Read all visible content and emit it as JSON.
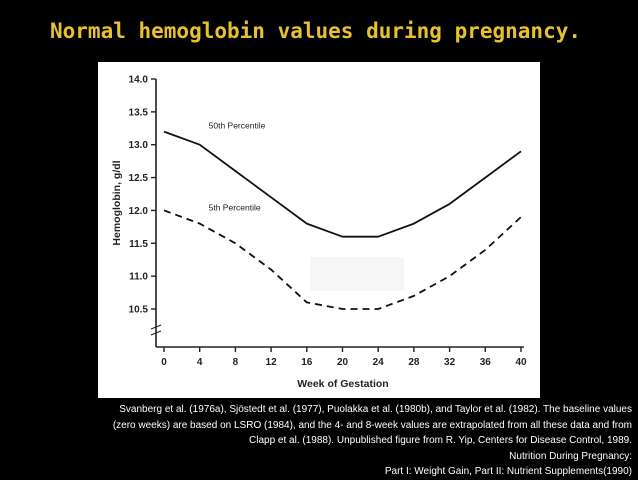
{
  "slide": {
    "title": "Normal hemoglobin values during pregnancy.",
    "colors": {
      "background": "#000000",
      "title": "#e8c030",
      "panel": "#ffffff",
      "text": "#ffffff"
    }
  },
  "citation": {
    "lines": [
      "Svanberg et al. (1976a), Sjöstedt et al. (1977), Puolakka et al. (1980b), and Taylor et al. (1982). The baseline values",
      "(zero weeks) are based on LSRO (1984), and the 4- and 8-week values are extrapolated from all these data and from",
      "Clapp et al. (1988). Unpublished figure from R. Yip, Centers for Disease Control, 1989.",
      "Nutrition During Pregnancy:",
      "Part I: Weight Gain, Part II: Nutrient Supplements(1990)"
    ]
  },
  "chart_data": {
    "type": "line",
    "xlabel": "Week of Gestation",
    "ylabel": "Hemoglobin, g/dl",
    "xlim": [
      0,
      40
    ],
    "ylim": [
      10.0,
      14.0
    ],
    "xticks": [
      "0",
      "4",
      "8",
      "12",
      "16",
      "20",
      "24",
      "28",
      "32",
      "36",
      "40"
    ],
    "yticks": [
      "10.5",
      "11.0",
      "11.5",
      "12.0",
      "12.5",
      "13.0",
      "13.5",
      "14.0"
    ],
    "grid": false,
    "x": [
      0,
      4,
      8,
      12,
      16,
      20,
      24,
      28,
      32,
      36,
      40
    ],
    "series": [
      {
        "name": "50th Percentile",
        "style": "solid",
        "values": [
          13.2,
          13.0,
          12.6,
          12.2,
          11.8,
          11.6,
          11.6,
          11.8,
          12.1,
          12.5,
          12.9
        ]
      },
      {
        "name": "5th Percentile",
        "style": "dashed",
        "values": [
          12.0,
          11.8,
          11.5,
          11.1,
          10.6,
          10.5,
          10.5,
          10.7,
          11.0,
          11.4,
          11.9
        ]
      }
    ]
  }
}
